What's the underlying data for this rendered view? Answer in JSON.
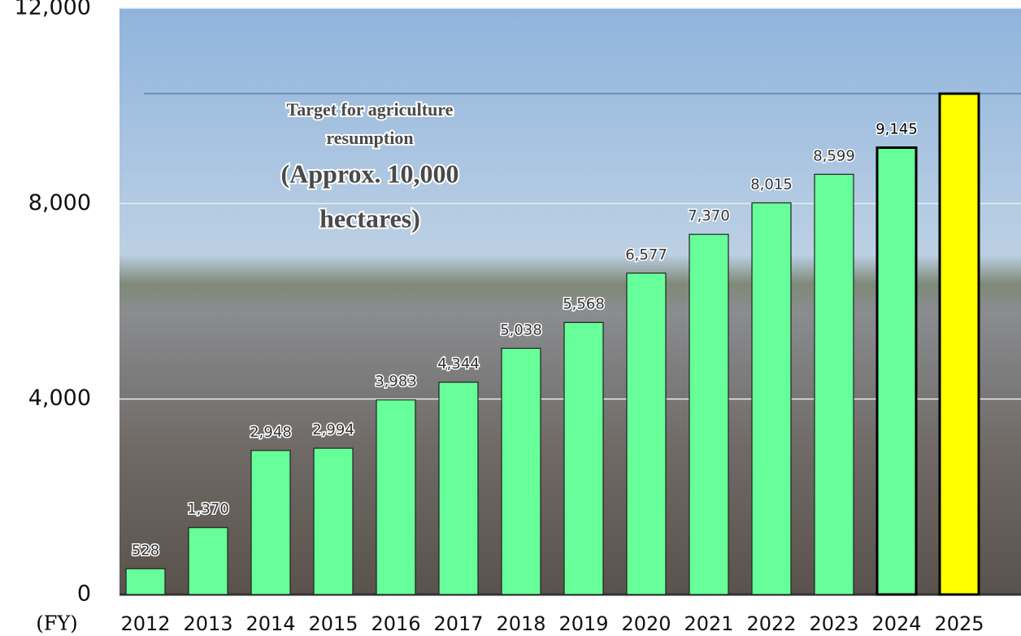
{
  "chart_data": {
    "type": "bar",
    "categories": [
      "2012",
      "2013",
      "2014",
      "2015",
      "2016",
      "2017",
      "2018",
      "2019",
      "2020",
      "2021",
      "2022",
      "2023",
      "2024",
      "2025"
    ],
    "values": [
      528,
      1370,
      2948,
      2994,
      3983,
      4344,
      5038,
      5568,
      6577,
      7370,
      8015,
      8599,
      9145,
      10250
    ],
    "value_labels": [
      "528",
      "1,370",
      "2,948",
      "2,994",
      "3,983",
      "4,344",
      "5,038",
      "5,568",
      "6,577",
      "7,370",
      "8,015",
      "8,599",
      "9,145",
      null
    ],
    "colors": [
      "#66ff99",
      "#66ff99",
      "#66ff99",
      "#66ff99",
      "#66ff99",
      "#66ff99",
      "#66ff99",
      "#66ff99",
      "#66ff99",
      "#66ff99",
      "#66ff99",
      "#66ff99",
      "#66ff99",
      "#ffff00"
    ],
    "edge_colors": [
      "#222",
      "#222",
      "#222",
      "#222",
      "#222",
      "#222",
      "#222",
      "#222",
      "#222",
      "#222",
      "#222",
      "#222",
      "#000",
      "#000"
    ],
    "ylim": [
      0,
      12000
    ],
    "yticks": [
      0,
      {
        "value": 4000,
        "label": "4,000"
      },
      {
        "value": 8000,
        "label": "8,000"
      },
      {
        "value": 12000,
        "label": "12,000"
      }
    ],
    "grid": true,
    "target_value": 10250,
    "annotation": [
      "Target for agriculture",
      "resumption",
      "(Approx. 10,000",
      "hectares)"
    ],
    "x_label": "(FY)"
  }
}
